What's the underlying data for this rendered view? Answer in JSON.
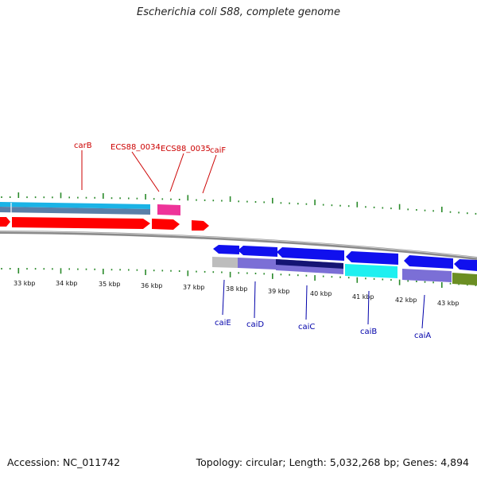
{
  "title": "Escherichia coli S88, complete genome",
  "footer": {
    "accession": "Accession: NC_011742",
    "info": "Topology: circular; Length: 5,032,268 bp; Genes: 4,894"
  },
  "colors": {
    "background": "#ffffff",
    "backbone": "#8a8a8a",
    "forward_cds": "#ff0000",
    "forward_highlight": "#1ab3e6",
    "forward_pink": "#ee3399",
    "reverse_cds": "#1010ee",
    "reverse_purple": "#7b6fd6",
    "reverse_navy": "#141473",
    "reverse_cyan": "#1ef0f0",
    "reverse_olive": "#6b8e23",
    "reverse_gray": "#bdbdbd",
    "ticks": "#2a8a2a",
    "forward_label": "#cc0000",
    "reverse_label": "#0000aa"
  },
  "kbp_labels": [
    "33 kbp",
    "34 kbp",
    "35 kbp",
    "36 kbp",
    "37 kbp",
    "38 kbp",
    "39 kbp",
    "40 kbp",
    "41 kbp",
    "42 kbp",
    "43 kbp"
  ],
  "gene_labels_forward": [
    {
      "name": "carB"
    },
    {
      "name": "ECS88_0034"
    },
    {
      "name": "ECS88_0035"
    },
    {
      "name": "caiF"
    }
  ],
  "gene_labels_reverse": [
    {
      "name": "caiE"
    },
    {
      "name": "caiD"
    },
    {
      "name": "caiC"
    },
    {
      "name": "caiB"
    },
    {
      "name": "caiA"
    }
  ]
}
